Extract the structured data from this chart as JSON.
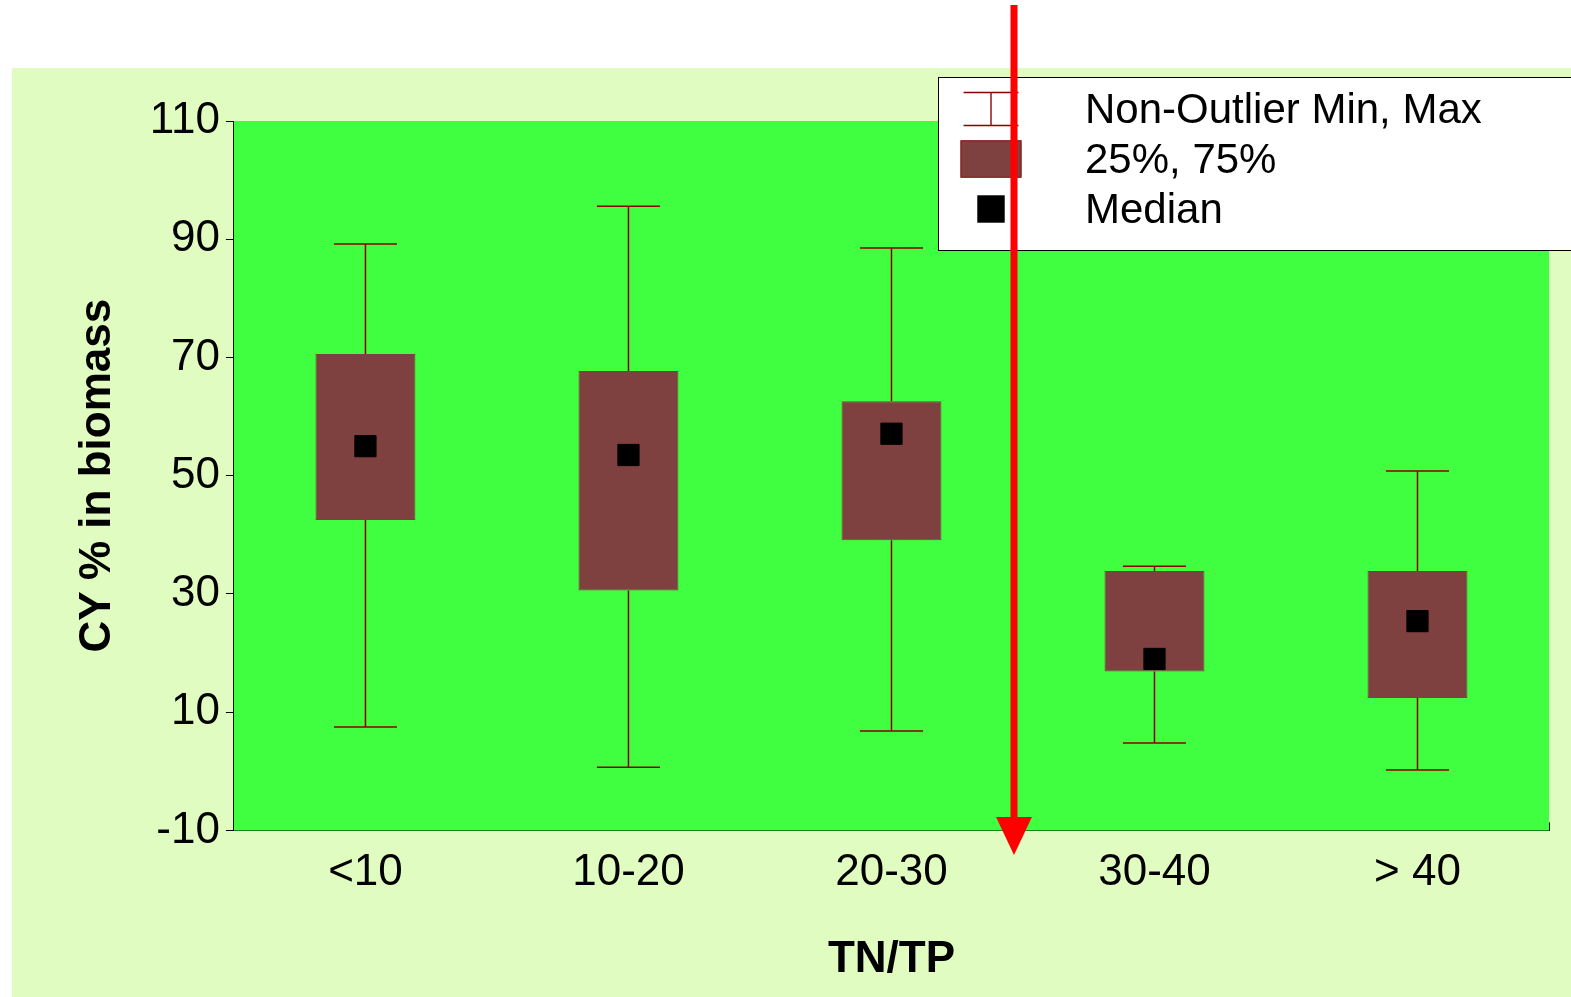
{
  "chart_data": {
    "type": "box",
    "xlabel": "TN/TP",
    "ylabel": "CY % in biomass",
    "categories": [
      "<10",
      "10-20",
      "20-30",
      "30-40",
      "> 40"
    ],
    "boxes": [
      {
        "low": 7.5,
        "q1": 42.5,
        "median": 55,
        "q3": 70.6,
        "high": 89.2
      },
      {
        "low": 0.7,
        "q1": 30.6,
        "median": 53.5,
        "q3": 67.7,
        "high": 95.6
      },
      {
        "low": 6.8,
        "q1": 39.1,
        "median": 57.1,
        "q3": 62.6,
        "high": 88.5
      },
      {
        "low": 4.8,
        "q1": 16.9,
        "median": 19,
        "q3": 33.9,
        "high": 34.7
      },
      {
        "low": 0.2,
        "q1": 12.4,
        "median": 25.4,
        "q3": 33.9,
        "high": 50.8
      }
    ],
    "color": "#7f4040",
    "ylim": [
      -10,
      110
    ],
    "yticks": [
      -10,
      10,
      30,
      50,
      70,
      90,
      110
    ],
    "grid": false,
    "marker": "square",
    "annotations": [
      "Non-Outlier Min, Max",
      "25%, 75%",
      "Median"
    ]
  }
}
